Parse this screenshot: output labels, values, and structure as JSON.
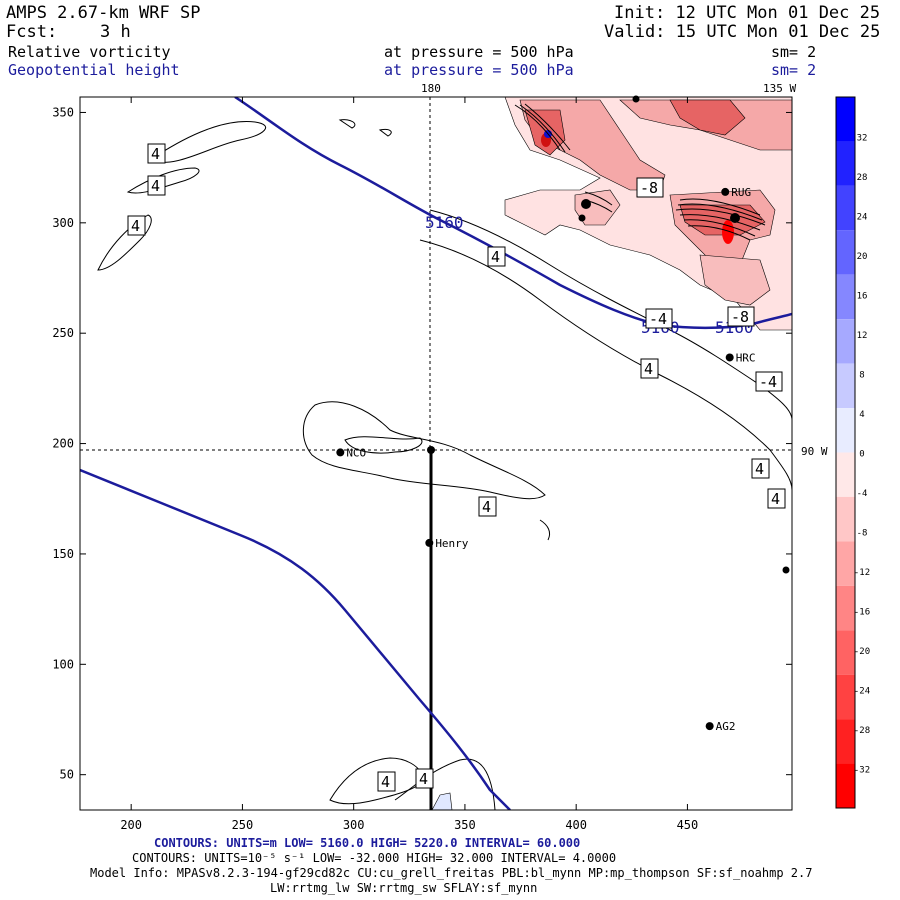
{
  "header": {
    "model": "AMPS 2.67-km WRF SP",
    "fcst_label": "Fcst:",
    "fcst_value": "3 h",
    "init": "Init: 12 UTC Mon 01 Dec 25",
    "valid": "Valid: 15 UTC Mon 01 Dec 25",
    "field1": "Relative vorticity",
    "field1_level": "at pressure =  500 hPa",
    "field1_sm": "sm= 2",
    "field2": "Geopotential height",
    "field2_level": "at pressure =  500 hPa",
    "field2_sm": "sm= 2"
  },
  "map_labels": {
    "meridian_180": "180",
    "meridian_135w": "135 W",
    "meridian_90w": "90 W",
    "height_5160_a": "5160",
    "height_5160_b": "5160",
    "height_5160_c": "5160",
    "vort_minus8_a": "-8",
    "vort_minus8_b": "-8",
    "vort_minus4_a": "-4",
    "vort_minus4_b": "-4",
    "vort_4": "4"
  },
  "stations": [
    {
      "name": "NCO",
      "x": 294,
      "y": 196
    },
    {
      "name": "Henry",
      "x": 334,
      "y": 155
    },
    {
      "name": "HRC",
      "x": 469,
      "y": 239
    },
    {
      "name": "RUG",
      "x": 467,
      "y": 314
    },
    {
      "name": "AG2",
      "x": 460,
      "y": 72
    }
  ],
  "axes": {
    "x_ticks": [
      "200",
      "250",
      "300",
      "350",
      "400",
      "450"
    ],
    "y_ticks": [
      "50",
      "100",
      "150",
      "200",
      "250",
      "300",
      "350"
    ],
    "x_range": [
      177,
      497
    ],
    "y_range": [
      34,
      357
    ]
  },
  "colorbar": {
    "unit_label": "10⁻⁵ s⁻¹",
    "ticks": [
      "32",
      "28",
      "24",
      "20",
      "16",
      "12",
      "8",
      "4",
      "0",
      "-4",
      "-8",
      "-12",
      "-16",
      "-20",
      "-24",
      "-28",
      "-32"
    ],
    "top_color": "#0000ff",
    "bottom_color": "#ff0000"
  },
  "footer": {
    "line1": "CONTOURS:  UNITS=m  LOW=  5160.0         HIGH=  5220.0        INTERVAL=   60.000",
    "line2": "CONTOURS:  UNITS=10⁻⁵ s⁻¹  LOW=  -32.000         HIGH=  32.000        INTERVAL=   4.0000",
    "line3": "Model Info: MPASv8.2.3-194-gf29cd82c CU:cu_grell_freitas PBL:bl_mynn MP:mp_thompson SF:sf_noahmp 2.7",
    "line4": "LW:rrtmg_lw SW:rrtmg_sw SFLAY:sf_mynn"
  },
  "colors": {
    "height_contour": "#1c1c9c",
    "vort_pos": "#e0e8ff",
    "vort_neg_light": "#ffdede",
    "vort_neg_mid": "#f39a9a",
    "vort_neg_strong": "#e85050"
  }
}
